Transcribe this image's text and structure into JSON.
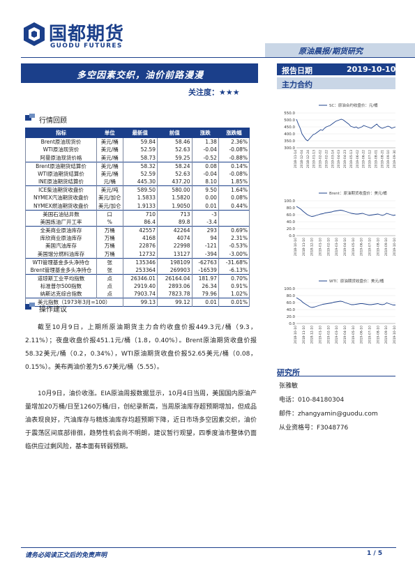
{
  "brand": {
    "name_cn": "国都期货",
    "name_en": "GUODU FUTURES",
    "color": "#1b3f8a"
  },
  "header": {
    "category": "原油晨报/期货研究"
  },
  "report": {
    "title": "多空因素交织，油价前路漫漫",
    "attention_label": "关注度：",
    "attention_stars": "★★★",
    "date_label": "报告日期",
    "date_value": "2019-10-10",
    "contract_label": "主力合约"
  },
  "sections": {
    "market_review": "行情回顾",
    "operation_advice": "操作建议"
  },
  "table": {
    "headers": [
      "指标",
      "单位",
      "最新值",
      "前值",
      "涨跌",
      "涨跌幅"
    ],
    "groups": [
      [
        [
          "Brent原油现货价",
          "美元/桶",
          "59.84",
          "58.46",
          "1.38",
          "2.36%"
        ],
        [
          "WTI原油现货价",
          "美元/桶",
          "52.59",
          "52.63",
          "-0.04",
          "-0.08%"
        ],
        [
          "阿曼原油现货价格",
          "美元/桶",
          "58.73",
          "59.25",
          "-0.52",
          "-0.88%"
        ]
      ],
      [
        [
          "Brent原油期货结算价",
          "美元/桶",
          "58.32",
          "58.24",
          "0.08",
          "0.14%"
        ],
        [
          "WTI原油期货结算价",
          "美元/桶",
          "52.59",
          "52.63",
          "-0.04",
          "-0.08%"
        ],
        [
          "INE原油期货结算价",
          "元/桶",
          "445.30",
          "437.20",
          "8.10",
          "1.85%"
        ]
      ],
      [
        [
          "ICE柴油期货收盘价",
          "美元/吨",
          "589.50",
          "580.00",
          "9.50",
          "1.64%"
        ],
        [
          "NYMEX汽油期货收盘价",
          "美元/加仑",
          "1.5833",
          "1.5820",
          "0.00",
          "0.08%"
        ],
        [
          "NYMEX燃油期货收盘价",
          "美元/加仑",
          "1.9133",
          "1.9050",
          "0.01",
          "0.44%"
        ]
      ],
      [
        [
          "美国石油钻井数",
          "口",
          "710",
          "713",
          "-3",
          ""
        ],
        [
          "美国炼油厂开工率",
          "%",
          "86.4",
          "89.8",
          "-3.4",
          ""
        ]
      ],
      [
        [
          "全美商业原油库存",
          "万桶",
          "42557",
          "42264",
          "293",
          "0.69%"
        ],
        [
          "库欣商业原油库存",
          "万桶",
          "4168",
          "4074",
          "94",
          "2.31%"
        ],
        [
          "美国汽油库存",
          "万桶",
          "22876",
          "22998",
          "-121",
          "-0.53%"
        ],
        [
          "美国馏分燃料油库存",
          "万桶",
          "12732",
          "13127",
          "-394",
          "-3.00%"
        ]
      ],
      [
        [
          "WTI管理基金多头净持仓",
          "张",
          "135346",
          "198109",
          "-62763",
          "-31.68%"
        ],
        [
          "Brent管理基金多头净持仓",
          "张",
          "253364",
          "269903",
          "-16539",
          "-6.13%"
        ]
      ],
      [
        [
          "道琼斯工业平均指数",
          "点",
          "26346.01",
          "26164.04",
          "181.97",
          "0.70%"
        ],
        [
          "标准普尔500指数",
          "点",
          "2919.40",
          "2893.06",
          "26.34",
          "0.91%"
        ],
        [
          "纳斯达克综合指数",
          "点",
          "7903.74",
          "7823.78",
          "79.96",
          "1.02%"
        ]
      ]
    ],
    "footer_row": [
      "美元指数（1973年3月=100）",
      "",
      "99.13",
      "99.12",
      "0.01",
      "0.01%"
    ]
  },
  "paragraphs": {
    "p1": "截至10月9日，上期所原油期货主力合约收盘价报449.3元/桶（9.3，2.11%）；夜盘收盘价报451.1元/桶（1.8，0.40%）。Brent原油期货收盘价报58.32美元/桶（0.2，0.34%），WTI原油期货收盘价报52.65美元/桶（0.08，0.15%）。美布两油价差为5.67美元/桶（5.55）。",
    "p2": "10月9日，油价收涨。EIA原油周报数据显示，10月4日当周，美国国内原油产量增加20万桶/日至1260万桶/日，创纪录新高，当周原油库存超预期增加，但成品油表现良好，汽油库存与精炼油库存均超预期下降，近日市场多空因素交织，油价于震荡区间底部徘徊，趋势性机会尚不明朗，建议暂行观望，四季度油市整体仍面临供应过剩风险，基本面有转弱预期。"
  },
  "charts": [
    {
      "legend": "SC：原油合约收盘价：元/桶",
      "color": "#1b3f8a",
      "y_ticks": [
        "550.0",
        "500.0",
        "450.0",
        "400.0",
        "350.0",
        "300.0"
      ],
      "ylim": [
        300,
        550
      ],
      "x_ticks": [
        "2018-11-14",
        "2018-12-04",
        "2018-12-24",
        "2019-01-13",
        "2019-02-02",
        "2019-02-22",
        "2019-03-14",
        "2019-04-03",
        "2019-04-23",
        "2019-05-13",
        "2019-06-02",
        "2019-06-22",
        "2019-07-12",
        "2019-08-01",
        "2019-08-21",
        "2019-09-10",
        "2019-09-30"
      ],
      "values": [
        505,
        470,
        440,
        400,
        380,
        360,
        350,
        365,
        380,
        395,
        400,
        410,
        420,
        430,
        425,
        440,
        450,
        455,
        460,
        470,
        480,
        490,
        495,
        500,
        505,
        500,
        490,
        480,
        470,
        455,
        450,
        445,
        450,
        440,
        445,
        450,
        460,
        455,
        450,
        445,
        440,
        450,
        460,
        470,
        455,
        445,
        440,
        445,
        450,
        455,
        450,
        440,
        445,
        450
      ]
    },
    {
      "legend": "Brent：原油期货收盘价：美元/桶",
      "color": "#1b3f8a",
      "y_ticks": [
        "100.0",
        "80.0",
        "60.0",
        "40.0",
        "20.0",
        "0.0"
      ],
      "ylim": [
        0,
        100
      ],
      "x_ticks": [
        "2018-10-10",
        "2018-11-10",
        "2018-12-10",
        "2019-01-10",
        "2019-02-10",
        "2019-03-10",
        "2019-04-10",
        "2019-05-10",
        "2019-06-10",
        "2019-07-10",
        "2019-08-10",
        "2019-09-10",
        "2019-10-10"
      ],
      "values": [
        84,
        80,
        76,
        70,
        65,
        60,
        57,
        55,
        56,
        58,
        60,
        62,
        63,
        65,
        66,
        67,
        68,
        70,
        71,
        72,
        73,
        72,
        70,
        68,
        66,
        64,
        63,
        62,
        62,
        63,
        64,
        62,
        60,
        58,
        59,
        60,
        61,
        62,
        60,
        58,
        60,
        64,
        62,
        60,
        58,
        59
      ]
    },
    {
      "legend": "WTI：原油期货收盘价：美元/桶",
      "color": "#1b3f8a",
      "y_ticks": [
        "100.0",
        "80.0",
        "60.0",
        "40.0",
        "20.0",
        "0.0"
      ],
      "ylim": [
        0,
        100
      ],
      "x_ticks": [
        "2018-10-10",
        "2018-11-10",
        "2018-12-10",
        "2019-01-10",
        "2019-02-10",
        "2019-03-10",
        "2019-04-10",
        "2019-05-10",
        "2019-06-10",
        "2019-07-10",
        "2019-08-10",
        "2019-09-10",
        "2019-10-10"
      ],
      "values": [
        74,
        70,
        66,
        60,
        56,
        52,
        48,
        46,
        47,
        49,
        51,
        53,
        55,
        56,
        57,
        58,
        59,
        61,
        62,
        63,
        64,
        63,
        60,
        58,
        56,
        54,
        54,
        55,
        56,
        57,
        57,
        56,
        55,
        54,
        54,
        55,
        56,
        57,
        55,
        54,
        55,
        59,
        57,
        55,
        53,
        53
      ]
    }
  ],
  "research": {
    "title": "研究所",
    "name": "张雅敏",
    "phone_label": "电话：",
    "phone": "010-84180304",
    "email_label": "邮件：",
    "email": "zhangyamin@guodu.com",
    "license_label": "从业资格号：",
    "license": "F3048776"
  },
  "footer": {
    "disclaimer": "请务必阅读正文后的免责声明",
    "page": "1 / 5"
  }
}
